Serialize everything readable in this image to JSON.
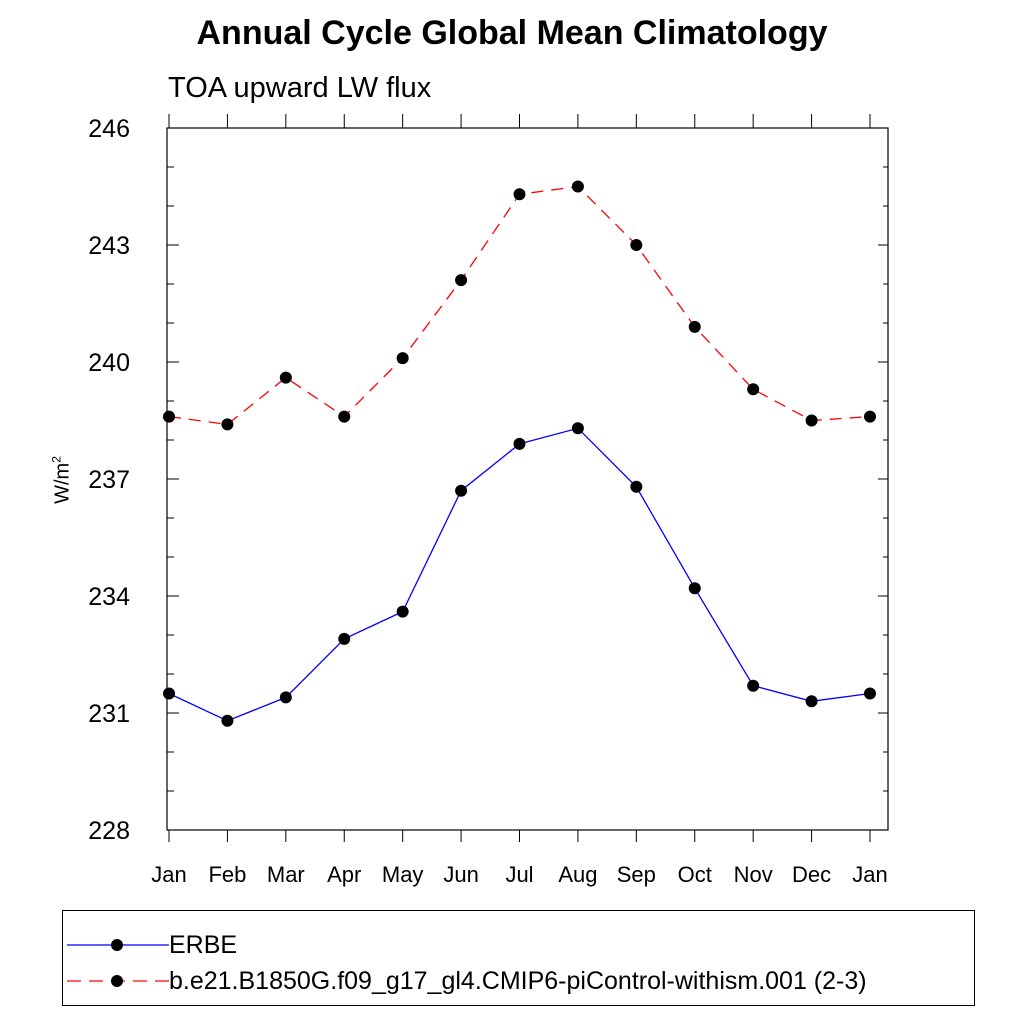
{
  "chart_data": {
    "type": "line",
    "title": "Annual Cycle Global Mean Climatology",
    "subtitle": "TOA upward LW flux",
    "ylabel_base": "W/m",
    "ylabel_sup": "2",
    "xlabel": "",
    "categories": [
      "Jan",
      "Feb",
      "Mar",
      "Apr",
      "May",
      "Jun",
      "Jul",
      "Aug",
      "Sep",
      "Oct",
      "Nov",
      "Dec",
      "Jan"
    ],
    "ylim": [
      228,
      246
    ],
    "yticks": [
      228,
      231,
      234,
      237,
      240,
      243,
      246
    ],
    "series": [
      {
        "name": "ERBE",
        "color": "#0000ff",
        "dash": "solid",
        "values": [
          231.5,
          230.8,
          231.4,
          232.9,
          233.6,
          236.7,
          237.9,
          238.3,
          236.8,
          234.2,
          231.7,
          231.3,
          231.5
        ]
      },
      {
        "name": "b.e21.B1850G.f09_g17_gl4.CMIP6-piControl-withism.001 (2-3)",
        "color": "#ff0000",
        "dash": "dashed",
        "values": [
          238.6,
          238.4,
          239.6,
          238.6,
          240.1,
          242.1,
          244.3,
          244.5,
          243.0,
          240.9,
          239.3,
          238.5,
          238.6
        ]
      }
    ],
    "legend_position": "bottom"
  }
}
